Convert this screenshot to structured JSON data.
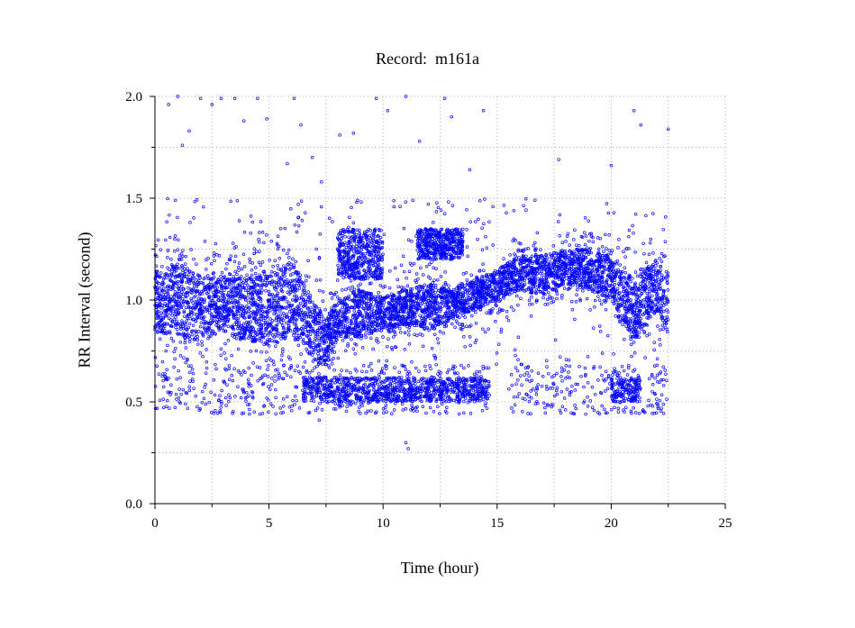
{
  "chart_data": {
    "type": "scatter",
    "title": "Record:  m161a",
    "xlabel": "Time (hour)",
    "ylabel": "RR Interval (second)",
    "xlim": [
      0,
      25
    ],
    "ylim": [
      0.0,
      2.0
    ],
    "x_ticks": [
      "0",
      "5",
      "10",
      "15",
      "20",
      "25"
    ],
    "y_ticks": [
      "0.0",
      "0.5",
      "1.0",
      "1.5",
      "2.0"
    ],
    "grid": true,
    "marker_color": "#0000ff",
    "series": [
      {
        "values": [
          {
            "t": 0.0,
            "rr_band_low": 0.85,
            "rr_band_high": 1.12
          },
          {
            "t": 1.0,
            "rr_band_low": 0.82,
            "rr_band_high": 1.18
          },
          {
            "t": 2.0,
            "rr_band_low": 0.8,
            "rr_band_high": 1.12
          },
          {
            "t": 3.0,
            "rr_band_low": 0.85,
            "rr_band_high": 1.1
          },
          {
            "t": 4.0,
            "rr_band_low": 0.8,
            "rr_band_high": 1.12
          },
          {
            "t": 5.0,
            "rr_band_low": 0.78,
            "rr_band_high": 1.15
          },
          {
            "t": 6.0,
            "rr_band_low": 0.82,
            "rr_band_high": 1.18
          },
          {
            "t": 7.0,
            "rr_band_low": 0.7,
            "rr_band_high": 1.0
          },
          {
            "t": 7.5,
            "rr_band_low": 0.68,
            "rr_band_high": 0.9
          },
          {
            "t": 8.0,
            "rr_band_low": 0.8,
            "rr_band_high": 1.0
          },
          {
            "t": 9.0,
            "rr_band_low": 0.82,
            "rr_band_high": 1.05
          },
          {
            "t": 10.0,
            "rr_band_low": 0.85,
            "rr_band_high": 1.02
          },
          {
            "t": 11.0,
            "rr_band_low": 0.88,
            "rr_band_high": 1.05
          },
          {
            "t": 12.0,
            "rr_band_low": 0.85,
            "rr_band_high": 1.08
          },
          {
            "t": 13.0,
            "rr_band_low": 0.9,
            "rr_band_high": 1.05
          },
          {
            "t": 14.0,
            "rr_band_low": 0.95,
            "rr_band_high": 1.1
          },
          {
            "t": 15.0,
            "rr_band_low": 1.0,
            "rr_band_high": 1.15
          },
          {
            "t": 16.0,
            "rr_band_low": 1.05,
            "rr_band_high": 1.22
          },
          {
            "t": 17.0,
            "rr_band_low": 1.02,
            "rr_band_high": 1.22
          },
          {
            "t": 18.0,
            "rr_band_low": 1.08,
            "rr_band_high": 1.25
          },
          {
            "t": 19.0,
            "rr_band_low": 1.05,
            "rr_band_high": 1.25
          },
          {
            "t": 20.0,
            "rr_band_low": 1.0,
            "rr_band_high": 1.22
          },
          {
            "t": 21.0,
            "rr_band_low": 0.8,
            "rr_band_high": 1.1
          },
          {
            "t": 22.0,
            "rr_band_low": 0.95,
            "rr_band_high": 1.2
          },
          {
            "t": 22.5,
            "rr_band_low": 0.85,
            "rr_band_high": 1.15
          }
        ],
        "upper_cluster": [
          {
            "t_range": [
              8.0,
              10.0
            ],
            "rr_range": [
              1.1,
              1.35
            ]
          },
          {
            "t_range": [
              11.5,
              13.5
            ],
            "rr_range": [
              1.2,
              1.35
            ]
          }
        ],
        "ectopic_band": {
          "t_range": [
            0.0,
            22.5
          ],
          "rr_range": [
            0.5,
            0.62
          ],
          "dense_t_ranges": [
            [
              6.5,
              14.7
            ],
            [
              20.0,
              21.3
            ]
          ]
        },
        "outliers": [
          {
            "t": 0.6,
            "rr": 1.96
          },
          {
            "t": 1.0,
            "rr": 2.0
          },
          {
            "t": 1.2,
            "rr": 1.76
          },
          {
            "t": 1.5,
            "rr": 1.83
          },
          {
            "t": 2.0,
            "rr": 1.99
          },
          {
            "t": 2.5,
            "rr": 1.96
          },
          {
            "t": 2.9,
            "rr": 1.99
          },
          {
            "t": 3.5,
            "rr": 1.99
          },
          {
            "t": 3.9,
            "rr": 1.88
          },
          {
            "t": 4.5,
            "rr": 1.99
          },
          {
            "t": 4.9,
            "rr": 1.89
          },
          {
            "t": 5.8,
            "rr": 1.67
          },
          {
            "t": 6.1,
            "rr": 1.99
          },
          {
            "t": 6.4,
            "rr": 1.86
          },
          {
            "t": 6.9,
            "rr": 1.7
          },
          {
            "t": 7.3,
            "rr": 1.58
          },
          {
            "t": 8.1,
            "rr": 1.81
          },
          {
            "t": 8.7,
            "rr": 1.82
          },
          {
            "t": 9.7,
            "rr": 1.99
          },
          {
            "t": 10.2,
            "rr": 1.93
          },
          {
            "t": 11.0,
            "rr": 2.0
          },
          {
            "t": 11.6,
            "rr": 1.78
          },
          {
            "t": 12.7,
            "rr": 1.99
          },
          {
            "t": 13.0,
            "rr": 1.9
          },
          {
            "t": 13.8,
            "rr": 1.64
          },
          {
            "t": 14.4,
            "rr": 1.93
          },
          {
            "t": 17.7,
            "rr": 1.69
          },
          {
            "t": 20.0,
            "rr": 1.66
          },
          {
            "t": 21.0,
            "rr": 1.93
          },
          {
            "t": 21.3,
            "rr": 1.86
          },
          {
            "t": 22.5,
            "rr": 1.84
          },
          {
            "t": 11.1,
            "rr": 0.27
          },
          {
            "t": 11.0,
            "rr": 0.3
          },
          {
            "t": 7.2,
            "rr": 0.41
          },
          {
            "t": 4.6,
            "rr": 0.44
          },
          {
            "t": 21.4,
            "rr": 0.46
          }
        ]
      }
    ]
  }
}
